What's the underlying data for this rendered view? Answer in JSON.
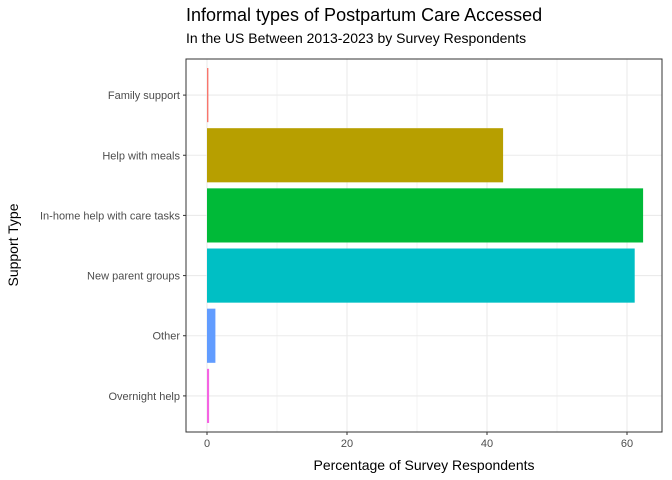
{
  "chart_data": {
    "type": "bar",
    "orientation": "horizontal",
    "title": "Informal types of Postpartum Care Accessed",
    "subtitle": "In the US Between 2013-2023 by Survey Respondents",
    "xlabel": "Percentage of Survey Respondents",
    "ylabel": "Support Type",
    "categories": [
      "Family support",
      "Help with meals",
      "In-home help with care tasks",
      "New parent groups",
      "Other",
      "Overnight help"
    ],
    "values": [
      0.2,
      42.3,
      62.3,
      61.1,
      1.2,
      0.3
    ],
    "colors": [
      "#F8766D",
      "#B79F00",
      "#00BA38",
      "#00BFC4",
      "#619CFF",
      "#F564E3"
    ],
    "xlim": [
      -3,
      65
    ],
    "xticks": [
      0,
      20,
      40,
      60
    ],
    "grid": true,
    "legend": "none"
  }
}
